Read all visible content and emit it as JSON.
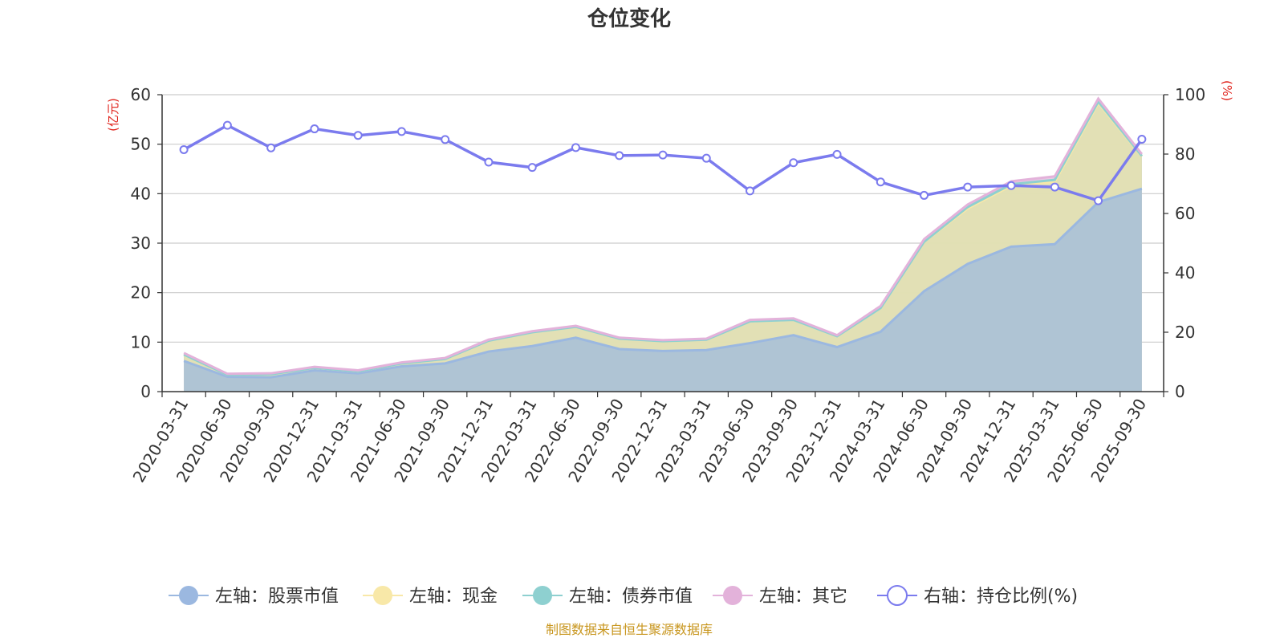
{
  "chart_data": {
    "type": "area",
    "title": "仓位变化",
    "categories": [
      "2020-03-31",
      "2020-06-30",
      "2020-09-30",
      "2020-12-31",
      "2021-03-31",
      "2021-06-30",
      "2021-09-30",
      "2021-12-31",
      "2022-03-31",
      "2022-06-30",
      "2022-09-30",
      "2022-12-31",
      "2023-03-31",
      "2023-06-30",
      "2023-09-30",
      "2023-12-31",
      "2024-03-31",
      "2024-06-30",
      "2024-09-30",
      "2024-12-31",
      "2025-03-31",
      "2025-06-30",
      "2025-09-30"
    ],
    "left_axis": {
      "unit": "(亿元)",
      "ylim": [
        0,
        60
      ],
      "ticks": [
        "0",
        "10",
        "20",
        "30",
        "40",
        "50",
        "60"
      ]
    },
    "right_axis": {
      "unit": "(%)",
      "ylim": [
        0,
        100
      ],
      "ticks": [
        "0",
        "20",
        "40",
        "60",
        "80",
        "100"
      ]
    },
    "series": [
      {
        "name": "左轴：股票市值",
        "axis": "left",
        "stacked": true,
        "color": "#9bb8e0",
        "values": [
          6.2,
          3.0,
          2.9,
          4.3,
          3.7,
          5.1,
          5.7,
          8.1,
          9.2,
          10.9,
          8.6,
          8.2,
          8.4,
          9.8,
          11.4,
          9.0,
          12.1,
          20.3,
          25.8,
          29.3,
          29.8,
          38.3,
          41.0
        ]
      },
      {
        "name": "左轴：现金",
        "axis": "left",
        "stacked": true,
        "color": "#f8e8a8",
        "values": [
          1.3,
          0.4,
          0.6,
          0.5,
          0.4,
          0.6,
          0.9,
          2.2,
          2.8,
          2.2,
          2.1,
          2.0,
          2.1,
          4.4,
          3.1,
          2.2,
          4.8,
          10.0,
          11.2,
          12.3,
          12.6,
          20.0,
          6.5
        ]
      },
      {
        "name": "左轴：债券市值",
        "axis": "left",
        "stacked": true,
        "color": "#8ed0d0",
        "values": [
          0,
          0,
          0,
          0,
          0,
          0,
          0,
          0,
          0,
          0,
          0,
          0,
          0,
          0,
          0,
          0,
          0,
          0,
          0.3,
          0.3,
          0.4,
          0.3,
          0.1
        ]
      },
      {
        "name": "左轴：其它",
        "axis": "left",
        "stacked": true,
        "color": "#e3b2da",
        "values": [
          0.3,
          0.2,
          0.2,
          0.2,
          0.2,
          0.2,
          0.2,
          0.2,
          0.2,
          0.2,
          0.2,
          0.2,
          0.2,
          0.3,
          0.3,
          0.2,
          0.4,
          0.5,
          0.5,
          0.6,
          0.7,
          0.6,
          0.4
        ]
      },
      {
        "name": "右轴：持仓比例(%)",
        "axis": "right",
        "stacked": false,
        "color": "#7b7bee",
        "values": [
          81.5,
          89.7,
          82.1,
          88.5,
          86.3,
          87.6,
          84.9,
          77.3,
          75.5,
          82.2,
          79.5,
          79.7,
          78.6,
          67.6,
          77.1,
          79.9,
          70.6,
          66.1,
          68.9,
          69.4,
          68.9,
          64.3,
          85.0
        ]
      }
    ],
    "grid": true,
    "legend_position": "bottom"
  },
  "source_note": "制图数据来自恒生聚源数据库"
}
